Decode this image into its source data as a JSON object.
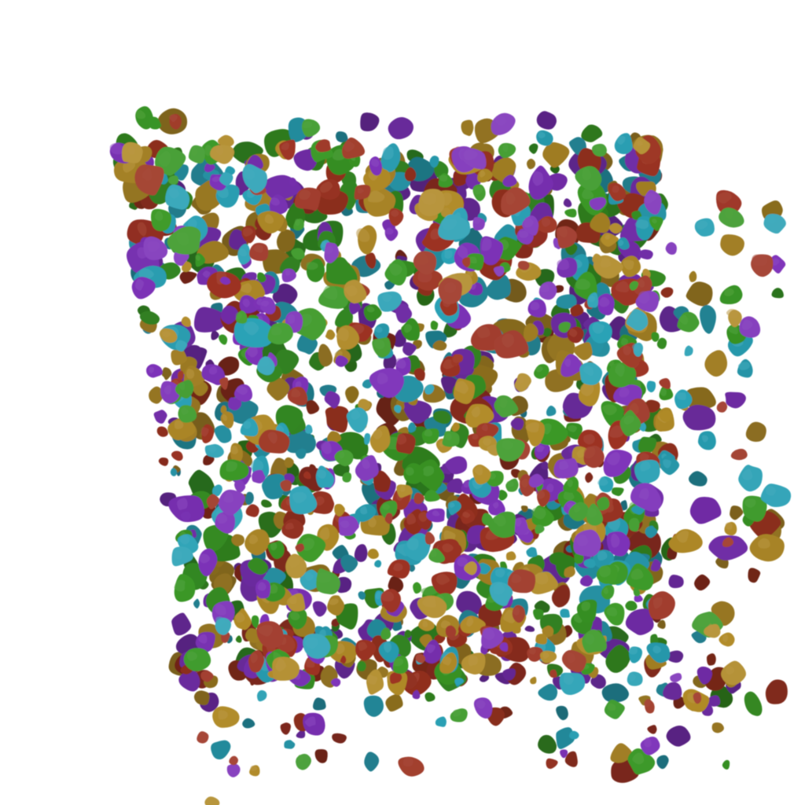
{
  "scene": {
    "background": "#ffffff",
    "subject": "grain-aggregate",
    "shape_kind": "rounded-irregular-polygon",
    "palette": {
      "red": "#9c3322",
      "ochre": "#b08a28",
      "green": "#3a9826",
      "teal": "#2aa1b5",
      "purple": "#7d32b9"
    },
    "palette_order": [
      "red",
      "ochre",
      "green",
      "teal",
      "purple"
    ]
  }
}
